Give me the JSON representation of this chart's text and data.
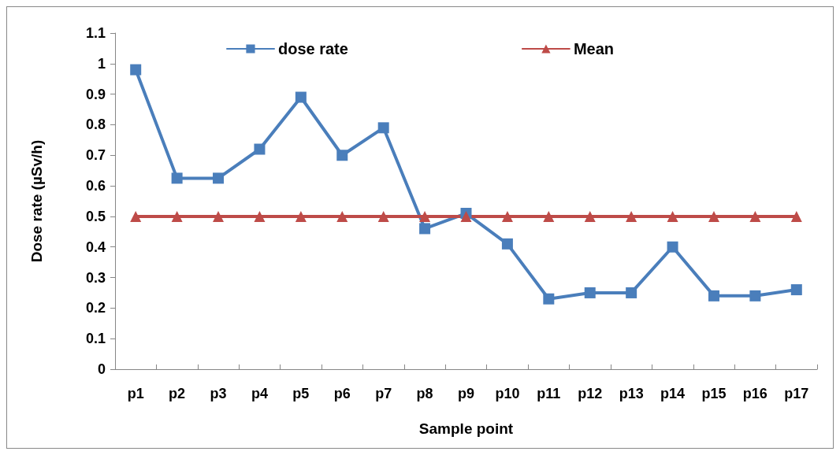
{
  "chart_data": {
    "type": "line",
    "xlabel": "Sample point",
    "ylabel": "Dose rate (µSv/h)",
    "categories": [
      "p1",
      "p2",
      "p3",
      "p4",
      "p5",
      "p6",
      "p7",
      "p8",
      "p9",
      "p10",
      "p11",
      "p12",
      "p13",
      "p14",
      "p15",
      "p16",
      "p17"
    ],
    "series": [
      {
        "name": "dose rate",
        "color": "#4a7ebb",
        "marker": "square",
        "values": [
          0.98,
          0.625,
          0.625,
          0.72,
          0.89,
          0.7,
          0.79,
          0.46,
          0.51,
          0.41,
          0.23,
          0.25,
          0.25,
          0.4,
          0.24,
          0.24,
          0.26
        ]
      },
      {
        "name": "Mean",
        "color": "#be4b48",
        "marker": "triangle",
        "values": [
          0.5,
          0.5,
          0.5,
          0.5,
          0.5,
          0.5,
          0.5,
          0.5,
          0.5,
          0.5,
          0.5,
          0.5,
          0.5,
          0.5,
          0.5,
          0.5,
          0.5
        ]
      }
    ],
    "ylim": [
      0,
      1.1
    ],
    "yticks": [
      0,
      0.1,
      0.2,
      0.3,
      0.4,
      0.5,
      0.6,
      0.7,
      0.8,
      0.9,
      1,
      1.1
    ],
    "grid": false,
    "legend": "top",
    "line_style": "solid"
  }
}
